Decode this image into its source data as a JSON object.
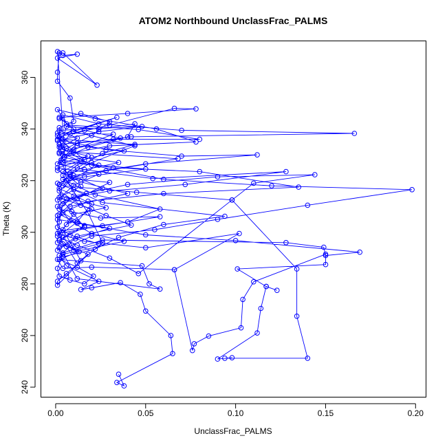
{
  "chart_data": {
    "type": "scatter",
    "title": "ATOM2 Northbound UnclassFrac_PALMS",
    "xlabel": "UnclassFrac_PALMS",
    "ylabel": "Theta (K)",
    "xlim": [
      -0.008,
      0.206
    ],
    "ylim": [
      236,
      374
    ],
    "x_ticks": [
      0.0,
      0.05,
      0.1,
      0.15,
      0.2
    ],
    "x_tick_labels": [
      "0.00",
      "0.05",
      "0.10",
      "0.15",
      "0.20"
    ],
    "y_ticks": [
      240,
      260,
      280,
      300,
      320,
      340,
      360
    ],
    "y_tick_labels": [
      "240",
      "260",
      "280",
      "300",
      "320",
      "340",
      "360"
    ],
    "connected": true,
    "marker": "open-circle",
    "grid": false,
    "legend": "none",
    "color": "#0000ff",
    "series": [
      {
        "points": [
          [
            0.035,
            245
          ],
          [
            0.038,
            240.5
          ],
          [
            0.034,
            241.8
          ],
          [
            0.065,
            253
          ],
          [
            0.064,
            260
          ],
          [
            0.05,
            269.5
          ],
          [
            0.047,
            276
          ],
          [
            0.036,
            280.5
          ],
          [
            0.02,
            278.5
          ],
          [
            0.014,
            277.8
          ],
          [
            0.024,
            281
          ],
          [
            0.006,
            287
          ],
          [
            0.002,
            291
          ],
          [
            0.009,
            295
          ],
          [
            0.02,
            298.5
          ],
          [
            0.055,
            301
          ],
          [
            0.09,
            305
          ],
          [
            0.14,
            310.5
          ],
          [
            0.198,
            316.5
          ],
          [
            0.12,
            318
          ],
          [
            0.06,
            320.5
          ],
          [
            0.02,
            326
          ],
          [
            0.002,
            333
          ],
          [
            0.008,
            338
          ],
          [
            0.03,
            341.5
          ],
          [
            0.066,
            348
          ],
          [
            0.078,
            347.8
          ],
          [
            0.04,
            346
          ],
          [
            0.002,
            344.5
          ],
          [
            0.01,
            340
          ],
          [
            0.001,
            336
          ],
          [
            0.028,
            332
          ],
          [
            0.07,
            329.5
          ],
          [
            0.112,
            330
          ],
          [
            0.05,
            326.5
          ],
          [
            0.01,
            322
          ],
          [
            0.004,
            318
          ],
          [
            0.045,
            315.5
          ],
          [
            0.098,
            312.5
          ],
          [
            0.11,
            319
          ],
          [
            0.144,
            322.3
          ],
          [
            0.09,
            321.5
          ],
          [
            0.04,
            318.5
          ],
          [
            0.01,
            314
          ],
          [
            0.002,
            309
          ],
          [
            0.025,
            305.5
          ],
          [
            0.058,
            306
          ],
          [
            0.026,
            302.5
          ],
          [
            0.001,
            299.5
          ],
          [
            0.016,
            296.5
          ],
          [
            0.05,
            294
          ],
          [
            0.102,
            299.5
          ],
          [
            0.066,
            285.5
          ],
          [
            0.02,
            286.5
          ],
          [
            0.004,
            286
          ],
          [
            0.001,
            289.5
          ],
          [
            0.048,
            287
          ],
          [
            0.052,
            280
          ],
          [
            0.058,
            278
          ],
          [
            0.012,
            282
          ],
          [
            0.004,
            292
          ],
          [
            0.026,
            297
          ],
          [
            0.128,
            296
          ],
          [
            0.149,
            294.2
          ],
          [
            0.15,
            291
          ],
          [
            0.169,
            292.3
          ],
          [
            0.1,
            296.8
          ],
          [
            0.05,
            299
          ],
          [
            0.012,
            303.5
          ],
          [
            0.002,
            307
          ],
          [
            0.018,
            312
          ],
          [
            0.06,
            315
          ],
          [
            0.135,
            317.5
          ],
          [
            0.08,
            323.5
          ],
          [
            0.032,
            325
          ],
          [
            0.003,
            328
          ],
          [
            0.012,
            334.5
          ],
          [
            0.042,
            337
          ],
          [
            0.166,
            338.3
          ],
          [
            0.07,
            339.5
          ],
          [
            0.024,
            342
          ],
          [
            0.004,
            345.5
          ],
          [
            0.006,
            342
          ],
          [
            0.001,
            347.5
          ],
          [
            0.022,
            344
          ],
          [
            0.056,
            340
          ],
          [
            0.078,
            335
          ],
          [
            0.03,
            333.5
          ],
          [
            0.004,
            330
          ],
          [
            0.001,
            324
          ],
          [
            0.014,
            319.5
          ],
          [
            0.04,
            315
          ],
          [
            0.008,
            310
          ],
          [
            0.001,
            305
          ],
          [
            0.03,
            301.5
          ],
          [
            0.011,
            297.5
          ],
          [
            0.001,
            293
          ],
          [
            0.004,
            299.8
          ],
          [
            0.012,
            304
          ],
          [
            0.02,
            311
          ],
          [
            0.002,
            317
          ],
          [
            0.008,
            323
          ],
          [
            0.035,
            327
          ],
          [
            0.002,
            330.5
          ],
          [
            0.001,
            335.5
          ],
          [
            0.024,
            339
          ],
          [
            0.048,
            341
          ],
          [
            0.002,
            339.5
          ],
          [
            0.012,
            336.5
          ],
          [
            0.003,
            333
          ],
          [
            0.002,
            340.5
          ],
          [
            0.01,
            343
          ],
          [
            0.008,
            352
          ],
          [
            0.001,
            358.5
          ],
          [
            0.001,
            362
          ],
          [
            0.002,
            369.5
          ],
          [
            0.004,
            369.5
          ],
          [
            0.023,
            357
          ],
          [
            0.001,
            367.5
          ],
          [
            0.012,
            369
          ],
          [
            0.004,
            368.5
          ],
          [
            0.001,
            370
          ],
          [
            0.006,
            320
          ],
          [
            0.018,
            307.5
          ],
          [
            0.026,
            296
          ],
          [
            0.006,
            284
          ],
          [
            0.001,
            281
          ],
          [
            0.001,
            279.5
          ],
          [
            0.006,
            283
          ],
          [
            0.014,
            289
          ],
          [
            0.004,
            301
          ],
          [
            0.01,
            307
          ],
          [
            0.028,
            309.5
          ],
          [
            0.003,
            314
          ],
          [
            0.001,
            319
          ],
          [
            0.016,
            321.5
          ],
          [
            0.05,
            324.5
          ],
          [
            0.004,
            327
          ],
          [
            0.018,
            329.5
          ],
          [
            0.004,
            332
          ],
          [
            0.001,
            337.5
          ],
          [
            0.034,
            344.5
          ],
          [
            0.01,
            339
          ],
          [
            0.044,
            333.5
          ],
          [
            0.02,
            327
          ],
          [
            0.008,
            322.5
          ],
          [
            0.026,
            317
          ],
          [
            0.004,
            312
          ],
          [
            0.009,
            308
          ],
          [
            0.016,
            302
          ],
          [
            0.002,
            297
          ],
          [
            0.006,
            294.5
          ],
          [
            0.012,
            288
          ],
          [
            0.018,
            291.5
          ],
          [
            0.004,
            295.5
          ],
          [
            0.002,
            300.5
          ],
          [
            0.04,
            304
          ],
          [
            0.058,
            309
          ],
          [
            0.022,
            314.5
          ],
          [
            0.004,
            320.5
          ],
          [
            0.028,
            323.8
          ],
          [
            0.068,
            328.5
          ],
          [
            0.01,
            331
          ],
          [
            0.002,
            334
          ],
          [
            0.032,
            336
          ],
          [
            0.08,
            336
          ],
          [
            0.046,
            339.8
          ],
          [
            0.008,
            341.5
          ],
          [
            0.002,
            344
          ],
          [
            0.014,
            346
          ],
          [
            0.03,
            342.8
          ],
          [
            0.02,
            337.5
          ],
          [
            0.006,
            332.5
          ],
          [
            0.001,
            326.5
          ],
          [
            0.016,
            324.3
          ],
          [
            0.054,
            320.8
          ],
          [
            0.128,
            323.5
          ],
          [
            0.072,
            318.5
          ],
          [
            0.03,
            316
          ],
          [
            0.006,
            313
          ],
          [
            0.001,
            310
          ],
          [
            0.008,
            304.5
          ],
          [
            0.02,
            299.5
          ],
          [
            0.038,
            296.5
          ],
          [
            0.004,
            291.5
          ],
          [
            0.001,
            286
          ],
          [
            0.002,
            283
          ],
          [
            0.008,
            281.5
          ],
          [
            0.016,
            280
          ],
          [
            0.021,
            283
          ],
          [
            0.012,
            286.5
          ],
          [
            0.002,
            289.5
          ],
          [
            0.013,
            292.5
          ],
          [
            0.001,
            296
          ],
          [
            0.002,
            304
          ],
          [
            0.004,
            311
          ],
          [
            0.017,
            315
          ],
          [
            0.002,
            318.5
          ],
          [
            0.012,
            325
          ],
          [
            0.026,
            330.5
          ],
          [
            0.044,
            334
          ],
          [
            0.004,
            336
          ],
          [
            0.006,
            341
          ],
          [
            0.024,
            340
          ],
          [
            0.044,
            342
          ],
          [
            0.04,
            337
          ],
          [
            0.018,
            333
          ],
          [
            0.005,
            329
          ],
          [
            0.024,
            326
          ],
          [
            0.01,
            321
          ],
          [
            0.002,
            316
          ],
          [
            0.014,
            310.5
          ],
          [
            0.028,
            306.5
          ],
          [
            0.042,
            302.8
          ],
          [
            0.012,
            298.5
          ],
          [
            0.002,
            294
          ],
          [
            0.004,
            290.5
          ],
          [
            0.022,
            293.5
          ],
          [
            0.035,
            298
          ],
          [
            0.06,
            303
          ],
          [
            0.094,
            306.2
          ],
          [
            0.026,
            311.5
          ],
          [
            0.01,
            316.5
          ],
          [
            0.004,
            322
          ],
          [
            0.016,
            328
          ],
          [
            0.004,
            335
          ],
          [
            0.001,
            338.5
          ],
          [
            0.032,
            338
          ],
          [
            0.01,
            332
          ],
          [
            0.003,
            327
          ],
          [
            0.008,
            320.8
          ],
          [
            0.03,
            319.3
          ],
          [
            0.012,
            313
          ],
          [
            0.001,
            306.5
          ],
          [
            0.001,
            302
          ],
          [
            0.008,
            299
          ],
          [
            0.024,
            295.5
          ],
          [
            0.01,
            293
          ],
          [
            0.004,
            298
          ],
          [
            0.016,
            302.6
          ],
          [
            0.004,
            307.5
          ],
          [
            0.001,
            312.5
          ],
          [
            0.01,
            318.2
          ],
          [
            0.024,
            322.5
          ],
          [
            0.001,
            325
          ],
          [
            0.02,
            329
          ],
          [
            0.038,
            331.5
          ],
          [
            0.012,
            333.5
          ],
          [
            0.002,
            337
          ],
          [
            0.016,
            339.5
          ],
          [
            0.036,
            336.5
          ],
          [
            0.002,
            331
          ],
          [
            0.014,
            327.5
          ],
          [
            0.004,
            323.5
          ],
          [
            0.014,
            317.8
          ],
          [
            0.002,
            313.5
          ],
          [
            0.02,
            309
          ],
          [
            0.006,
            303
          ],
          [
            0.001,
            298.5
          ],
          [
            0.012,
            295
          ],
          [
            0.03,
            290
          ],
          [
            0.046,
            284
          ],
          [
            0.098,
            312.5
          ],
          [
            0.134,
            285.8
          ],
          [
            0.134,
            267.5
          ],
          [
            0.14,
            251.2
          ],
          [
            0.094,
            251.2
          ],
          [
            0.098,
            251.4
          ],
          [
            0.09,
            250.9
          ],
          [
            0.112,
            261
          ],
          [
            0.114,
            270.5
          ],
          [
            0.117,
            279
          ],
          [
            0.123,
            277.5
          ],
          [
            0.117,
            279
          ],
          [
            0.101,
            285.8
          ],
          [
            0.15,
            287.5
          ],
          [
            0.15,
            291.5
          ],
          [
            0.11,
            280.8
          ],
          [
            0.104,
            274
          ],
          [
            0.103,
            263
          ],
          [
            0.085,
            259.8
          ],
          [
            0.077,
            256.8
          ],
          [
            0.076,
            254.2
          ],
          [
            0.066,
            285.5
          ]
        ]
      }
    ]
  }
}
